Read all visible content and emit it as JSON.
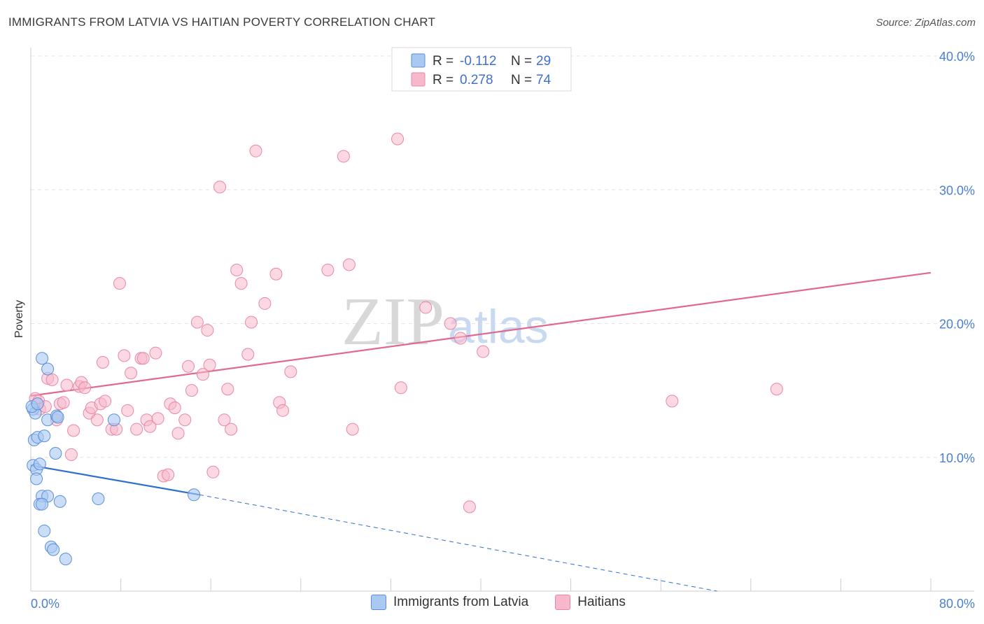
{
  "title": "IMMIGRANTS FROM LATVIA VS HAITIAN POVERTY CORRELATION CHART",
  "source": "Source: ZipAtlas.com",
  "watermark": {
    "zip": "ZIP",
    "atlas": "atlas"
  },
  "colors": {
    "latvia_fill": "#a9c8f2",
    "latvia_stroke": "#5b8fd8",
    "latvia_line": "#2f6fce",
    "haiti_fill": "#f7b8cb",
    "haiti_stroke": "#e887a7",
    "haiti_line": "#e06992",
    "axis_text": "#4a7fd0",
    "grid": "#e3e3e3"
  },
  "legend": {
    "rows": [
      {
        "r_label": "R =",
        "r_value": "-0.112",
        "n_label": "N =",
        "n_value": "29"
      },
      {
        "r_label": "R =",
        "r_value": "0.278",
        "n_label": "N =",
        "n_value": "74"
      }
    ]
  },
  "bottom_legend": {
    "latvia": "Immigrants from Latvia",
    "haiti": "Haitians"
  },
  "chart_data": {
    "type": "scatter",
    "title": "IMMIGRANTS FROM LATVIA VS HAITIAN POVERTY CORRELATION CHART",
    "xlabel": "",
    "ylabel": "Poverty",
    "xlim": [
      0,
      80
    ],
    "ylim": [
      0,
      40
    ],
    "x_tick_labels": [
      "0.0%",
      "80.0%"
    ],
    "y_ticks": [
      10,
      20,
      30,
      40
    ],
    "y_tick_labels": [
      "10.0%",
      "20.0%",
      "30.0%",
      "40.0%"
    ],
    "series": [
      {
        "name": "Immigrants from Latvia",
        "r": -0.112,
        "n": 29,
        "trend": {
          "x0": 0,
          "y0": 9.4,
          "x1": 15,
          "y1": 7.2,
          "dashed_to_x": 61,
          "dashed_to_y": 0
        },
        "points": [
          [
            0.2,
            13.6
          ],
          [
            0.4,
            13.3
          ],
          [
            1.0,
            17.4
          ],
          [
            1.5,
            16.6
          ],
          [
            0.3,
            11.3
          ],
          [
            0.6,
            11.5
          ],
          [
            1.2,
            11.6
          ],
          [
            1.5,
            12.8
          ],
          [
            2.3,
            13.1
          ],
          [
            2.4,
            13.0
          ],
          [
            2.2,
            10.3
          ],
          [
            0.2,
            9.4
          ],
          [
            0.5,
            9.1
          ],
          [
            0.8,
            9.5
          ],
          [
            0.5,
            8.4
          ],
          [
            1.0,
            7.1
          ],
          [
            1.5,
            7.1
          ],
          [
            0.8,
            6.5
          ],
          [
            1.0,
            6.5
          ],
          [
            2.6,
            6.7
          ],
          [
            6.0,
            6.9
          ],
          [
            7.4,
            12.8
          ],
          [
            14.5,
            7.2
          ],
          [
            1.2,
            4.5
          ],
          [
            1.8,
            3.3
          ],
          [
            2.0,
            3.1
          ],
          [
            3.1,
            2.4
          ],
          [
            0.1,
            13.8
          ],
          [
            0.6,
            14.0
          ]
        ]
      },
      {
        "name": "Haitians",
        "r": 0.278,
        "n": 74,
        "trend": {
          "x0": 0,
          "y0": 14.6,
          "x1": 80,
          "y1": 23.8
        },
        "points": [
          [
            0.4,
            14.4
          ],
          [
            0.7,
            14.2
          ],
          [
            0.8,
            13.6
          ],
          [
            1.3,
            13.8
          ],
          [
            1.5,
            15.9
          ],
          [
            1.9,
            15.8
          ],
          [
            2.3,
            12.8
          ],
          [
            2.6,
            14.0
          ],
          [
            2.9,
            14.1
          ],
          [
            3.2,
            15.4
          ],
          [
            3.6,
            10.2
          ],
          [
            3.8,
            12.0
          ],
          [
            4.3,
            15.3
          ],
          [
            4.5,
            15.6
          ],
          [
            4.8,
            15.2
          ],
          [
            5.2,
            13.3
          ],
          [
            5.4,
            13.7
          ],
          [
            5.9,
            12.8
          ],
          [
            6.2,
            14.0
          ],
          [
            6.4,
            17.1
          ],
          [
            6.6,
            14.2
          ],
          [
            7.2,
            12.1
          ],
          [
            7.6,
            12.1
          ],
          [
            7.9,
            23.0
          ],
          [
            8.3,
            17.6
          ],
          [
            8.6,
            13.5
          ],
          [
            8.9,
            16.3
          ],
          [
            9.4,
            12.1
          ],
          [
            9.8,
            17.4
          ],
          [
            10.0,
            17.4
          ],
          [
            10.3,
            12.8
          ],
          [
            10.6,
            12.3
          ],
          [
            11.1,
            17.8
          ],
          [
            11.3,
            12.9
          ],
          [
            11.8,
            8.6
          ],
          [
            12.2,
            8.7
          ],
          [
            12.4,
            14.0
          ],
          [
            12.8,
            13.7
          ],
          [
            13.1,
            11.8
          ],
          [
            13.7,
            12.8
          ],
          [
            14.0,
            16.8
          ],
          [
            14.3,
            15.0
          ],
          [
            14.8,
            20.1
          ],
          [
            15.3,
            16.2
          ],
          [
            15.7,
            19.5
          ],
          [
            15.9,
            16.9
          ],
          [
            16.2,
            8.9
          ],
          [
            16.8,
            30.2
          ],
          [
            17.2,
            12.8
          ],
          [
            17.5,
            15.1
          ],
          [
            17.8,
            12.1
          ],
          [
            18.3,
            24.0
          ],
          [
            18.7,
            23.0
          ],
          [
            19.3,
            17.7
          ],
          [
            19.6,
            20.1
          ],
          [
            20.0,
            32.9
          ],
          [
            20.8,
            21.5
          ],
          [
            21.8,
            23.7
          ],
          [
            22.1,
            14.1
          ],
          [
            22.4,
            13.5
          ],
          [
            23.1,
            16.4
          ],
          [
            26.4,
            24.0
          ],
          [
            27.8,
            32.5
          ],
          [
            28.3,
            24.4
          ],
          [
            28.6,
            12.1
          ],
          [
            32.6,
            33.8
          ],
          [
            32.9,
            15.2
          ],
          [
            35.1,
            21.2
          ],
          [
            37.3,
            20.0
          ],
          [
            38.2,
            18.9
          ],
          [
            39.0,
            6.3
          ],
          [
            40.2,
            17.9
          ],
          [
            57.0,
            14.2
          ],
          [
            66.3,
            15.1
          ]
        ]
      }
    ]
  }
}
